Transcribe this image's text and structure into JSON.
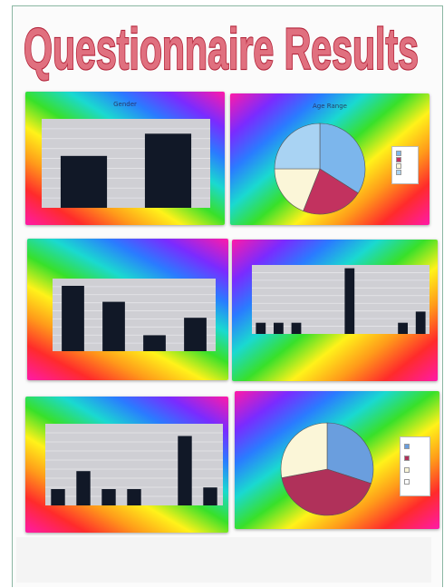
{
  "page": {
    "title": "Questionnaire Results",
    "title_fill": "#e0707f",
    "title_stroke": "#b3243a"
  },
  "chart_data": [
    {
      "type": "bar",
      "title": "Gender",
      "categories": [
        "",
        ""
      ],
      "values": [
        70,
        100
      ],
      "ylim": [
        0,
        120
      ],
      "grid": true,
      "bar_color": "#111827"
    },
    {
      "type": "pie",
      "title": "Age Range",
      "slices": [
        {
          "value": 34,
          "color": "#7cb6ec"
        },
        {
          "value": 22,
          "color": "#c2325f"
        },
        {
          "value": 19,
          "color": "#fbf6d8"
        },
        {
          "value": 25,
          "color": "#a9d3f3"
        }
      ],
      "legend": "right",
      "legend_entries": [
        "",
        "",
        "",
        ""
      ]
    },
    {
      "type": "bar",
      "title": "",
      "categories": [
        "",
        "",
        "",
        ""
      ],
      "values": [
        90,
        68,
        22,
        46
      ],
      "ylim": [
        0,
        100
      ],
      "grid": true,
      "bar_color": "#111827"
    },
    {
      "type": "bar",
      "title": "",
      "categories": [
        "",
        "",
        "",
        "",
        "",
        "",
        "",
        "",
        "",
        ""
      ],
      "values": [
        17,
        17,
        17,
        0,
        0,
        100,
        0,
        0,
        17,
        34
      ],
      "ylim": [
        0,
        105
      ],
      "grid": true,
      "bar_color": "#111827"
    },
    {
      "type": "bar",
      "title": "",
      "categories": [
        "",
        "",
        "",
        "",
        "",
        "",
        ""
      ],
      "values": [
        20,
        42,
        20,
        20,
        0,
        85,
        22
      ],
      "ylim": [
        0,
        100
      ],
      "grid": true,
      "bar_color": "#111827"
    },
    {
      "type": "pie",
      "title": "",
      "slices": [
        {
          "value": 30,
          "color": "#6a9ede"
        },
        {
          "value": 42,
          "color": "#b0315a"
        },
        {
          "value": 28,
          "color": "#fbf6d8"
        }
      ],
      "legend": "right",
      "legend_entries": [
        "",
        "",
        "",
        ""
      ]
    }
  ]
}
